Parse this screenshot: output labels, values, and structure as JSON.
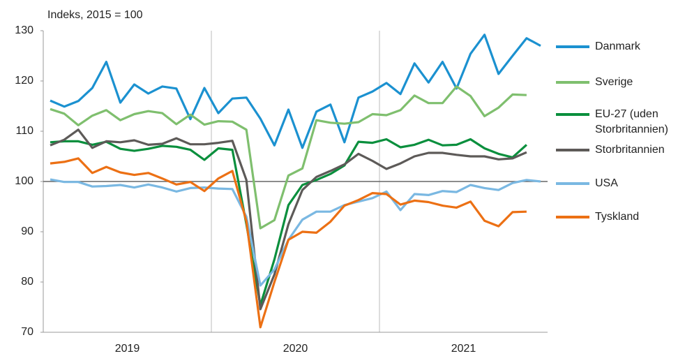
{
  "chart_data": {
    "type": "line",
    "subtitle": "Indeks, 2015 = 100",
    "categories": [
      "2019",
      null,
      null,
      null,
      null,
      null,
      null,
      null,
      null,
      null,
      null,
      null,
      "2020",
      null,
      null,
      null,
      null,
      null,
      null,
      null,
      null,
      null,
      null,
      null,
      "2021",
      null,
      null,
      null,
      null,
      null,
      null,
      null,
      null,
      null,
      null,
      null
    ],
    "ylim": [
      70,
      130
    ],
    "yticks": [
      70,
      80,
      90,
      100,
      110,
      120,
      130
    ],
    "hline": 100,
    "legend": "right",
    "series": [
      {
        "name": "Danmark",
        "color": "#1b91d0",
        "values": [
          116.1,
          114.9,
          116,
          118.6,
          123.8,
          115.7,
          119.3,
          117.5,
          118.9,
          118.5,
          112.4,
          118.6,
          113.6,
          116.5,
          116.7,
          112.5,
          107.2,
          114.3,
          106.7,
          113.9,
          115.3,
          107.8,
          116.7,
          117.9,
          119.6,
          117.4,
          123.5,
          119.7,
          123.8,
          118.5,
          125.4,
          129.2,
          121.4,
          125,
          128.5,
          127
        ]
      },
      {
        "name": "Sverige",
        "color": "#7fbf6e",
        "values": [
          114.4,
          113.5,
          111.2,
          113.1,
          114.2,
          112.2,
          113.4,
          114,
          113.6,
          111.4,
          113.3,
          111.3,
          112,
          111.9,
          110.3,
          90.7,
          92.3,
          101.2,
          102.6,
          112.2,
          111.7,
          111.5,
          111.8,
          113.4,
          113.2,
          114.2,
          117.1,
          115.6,
          115.6,
          118.9,
          117,
          113,
          114.7,
          117.3,
          117.2,
          null
        ]
      },
      {
        "name": "EU-27 (uden Storbritannien)",
        "color": "#0a8f3d",
        "values": [
          107.8,
          108,
          108,
          107.3,
          107.9,
          106.5,
          106.1,
          106.5,
          107.1,
          106.9,
          106.3,
          104.3,
          106.6,
          106.3,
          91.5,
          75.4,
          84.5,
          95.3,
          99.3,
          100.3,
          101.5,
          103.2,
          107.9,
          107.7,
          108.4,
          106.8,
          107.3,
          108.3,
          107.2,
          107.3,
          108.4,
          106.6,
          105.5,
          104.8,
          107.3,
          null
        ]
      },
      {
        "name": "Storbritannien",
        "color": "#5d5a58",
        "values": [
          107.2,
          108.3,
          110.3,
          106.7,
          108,
          107.8,
          108.2,
          107.3,
          107.5,
          108.6,
          107.4,
          107.4,
          107.7,
          108.1,
          100.3,
          74.6,
          81.5,
          91.5,
          98.3,
          100.9,
          102.1,
          103.4,
          105.5,
          104.1,
          102.5,
          103.6,
          105,
          105.7,
          105.7,
          105.3,
          105,
          105,
          104.4,
          104.6,
          105.8,
          null
        ]
      },
      {
        "name": "USA",
        "color": "#7ab8e2",
        "values": [
          100.4,
          99.9,
          99.9,
          99,
          99.1,
          99.3,
          98.8,
          99.4,
          98.8,
          98,
          98.7,
          98.8,
          98.6,
          98.5,
          93,
          79.3,
          82.5,
          88.4,
          92.4,
          94,
          94,
          95.3,
          96,
          96.7,
          98,
          94.3,
          97.5,
          97.3,
          98.1,
          97.9,
          99.3,
          98.7,
          98.3,
          99.7,
          100.3,
          100
        ]
      },
      {
        "name": "Tyskland",
        "color": "#ec7014",
        "values": [
          103.6,
          103.9,
          104.6,
          101.7,
          102.9,
          101.8,
          101.3,
          101.7,
          100.6,
          99.4,
          99.9,
          98.1,
          100.6,
          102.1,
          92.1,
          71,
          80,
          88.4,
          90,
          89.8,
          92,
          95.2,
          96.3,
          97.7,
          97.5,
          95.4,
          96.2,
          95.9,
          95.2,
          94.8,
          96,
          92.2,
          91.1,
          93.9,
          94,
          null
        ]
      }
    ]
  }
}
